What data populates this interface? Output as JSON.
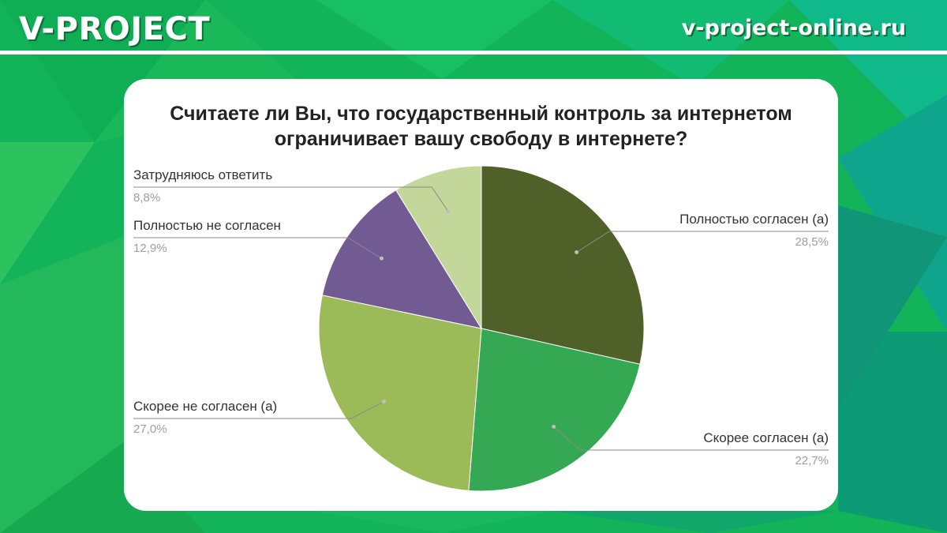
{
  "header": {
    "brand": "V-PROJECT",
    "site": "v-project-online.ru"
  },
  "colors": {
    "background": "#13b35a",
    "card": "#ffffff"
  },
  "chart_data": {
    "type": "pie",
    "title_lines": [
      "Считаете ли Вы, что государственный контроль за интернетом",
      "ограничивает вашу свободу в интернете?"
    ],
    "slices": [
      {
        "label": "Полностью согласен (а)",
        "value": 28.5,
        "value_text": "28,5%",
        "color": "#4f6128",
        "side": "right"
      },
      {
        "label": "Скорее согласен (а)",
        "value": 22.7,
        "value_text": "22,7%",
        "color": "#34a853",
        "side": "right"
      },
      {
        "label": "Скорее не согласен (а)",
        "value": 27.0,
        "value_text": "27,0%",
        "color": "#9bbb59",
        "side": "left"
      },
      {
        "label": "Полностью не согласен",
        "value": 12.9,
        "value_text": "12,9%",
        "color": "#725a93",
        "side": "left"
      },
      {
        "label": "Затрудняюсь ответить",
        "value": 8.8,
        "value_text": "8,8%",
        "color": "#c4d79b",
        "side": "left"
      }
    ],
    "start": "12 o'clock",
    "direction": "clockwise"
  }
}
